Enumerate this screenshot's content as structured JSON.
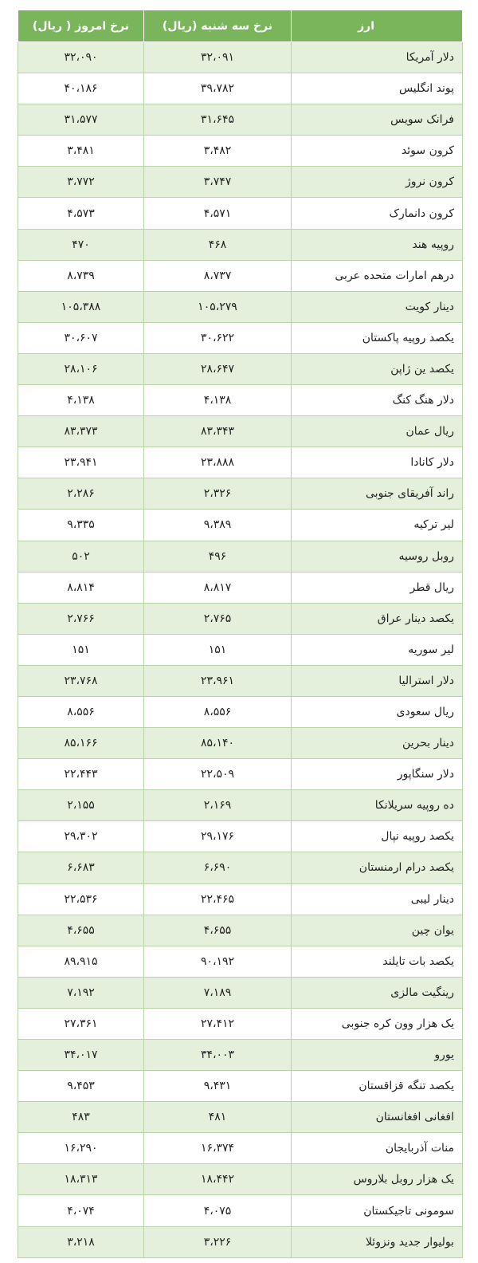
{
  "table": {
    "header": [
      "ارز",
      "نرخ سه شنبه (ریال)",
      "نرخ امروز ( ریال)"
    ],
    "rows": [
      [
        "دلار آمریکا",
        "۳۲،۰۹۱",
        "۳۲،۰۹۰"
      ],
      [
        "پوند انگلیس",
        "۳۹،۷۸۲",
        "۴۰،۱۸۶"
      ],
      [
        "فرانک سویس",
        "۳۱،۶۴۵",
        "۳۱،۵۷۷"
      ],
      [
        "کرون سوئد",
        "۳،۴۸۲",
        "۳،۴۸۱"
      ],
      [
        "کرون نروژ",
        "۳،۷۴۷",
        "۳،۷۷۲"
      ],
      [
        "کرون دانمارک",
        "۴،۵۷۱",
        "۴،۵۷۳"
      ],
      [
        "روپیه هند",
        "۴۶۸",
        "۴۷۰"
      ],
      [
        "درهم امارات متحده عربی",
        "۸،۷۳۷",
        "۸،۷۳۹"
      ],
      [
        "دینار کویت",
        "۱۰۵،۲۷۹",
        "۱۰۵،۳۸۸"
      ],
      [
        "یکصد روپیه پاکستان",
        "۳۰،۶۲۲",
        "۳۰،۶۰۷"
      ],
      [
        "یکصد ین ژاپن",
        "۲۸،۶۴۷",
        "۲۸،۱۰۶"
      ],
      [
        "دلار هنگ کنگ",
        "۴،۱۳۸",
        "۴،۱۳۸"
      ],
      [
        "ریال عمان",
        "۸۳،۳۴۳",
        "۸۳،۳۷۳"
      ],
      [
        "دلار کانادا",
        "۲۳،۸۸۸",
        "۲۳،۹۴۱"
      ],
      [
        "راند آفریقای جنوبی",
        "۲،۳۲۶",
        "۲،۲۸۶"
      ],
      [
        "لیر ترکیه",
        "۹،۳۸۹",
        "۹،۳۳۵"
      ],
      [
        "روبل روسیه",
        "۴۹۶",
        "۵۰۲"
      ],
      [
        "ریال قطر",
        "۸،۸۱۷",
        "۸،۸۱۴"
      ],
      [
        "یکصد دینار عراق",
        "۲،۷۶۵",
        "۲،۷۶۶"
      ],
      [
        "لیر سوریه",
        "۱۵۱",
        "۱۵۱"
      ],
      [
        "دلار استرالیا",
        "۲۳،۹۶۱",
        "۲۳،۷۶۸"
      ],
      [
        "ریال سعودی",
        "۸،۵۵۶",
        "۸،۵۵۶"
      ],
      [
        "دینار بحرین",
        "۸۵،۱۴۰",
        "۸۵،۱۶۶"
      ],
      [
        "دلار سنگاپور",
        "۲۲،۵۰۹",
        "۲۲،۴۴۳"
      ],
      [
        "ده روپیه سریلانکا",
        "۲،۱۶۹",
        "۲،۱۵۵"
      ],
      [
        "یکصد روپیه نپال",
        "۲۹،۱۷۶",
        "۲۹،۳۰۲"
      ],
      [
        "یکصد درام ارمنستان",
        "۶،۶۹۰",
        "۶،۶۸۳"
      ],
      [
        "دینار لیبی",
        "۲۲،۴۶۵",
        "۲۲،۵۳۶"
      ],
      [
        "یوان چین",
        "۴،۶۵۵",
        "۴،۶۵۵"
      ],
      [
        "یکصد بات تایلند",
        "۹۰،۱۹۲",
        "۸۹،۹۱۵"
      ],
      [
        "رینگیت مالزی",
        "۷،۱۸۹",
        "۷،۱۹۲"
      ],
      [
        "یک هزار وون کره جنوبی",
        "۲۷،۴۱۲",
        "۲۷،۳۶۱"
      ],
      [
        "یورو",
        "۳۴،۰۰۳",
        "۳۴،۰۱۷"
      ],
      [
        "یکصد تنگه قزاقستان",
        "۹،۴۳۱",
        "۹،۴۵۳"
      ],
      [
        "افغانی افغانستان",
        "۴۸۱",
        "۴۸۳"
      ],
      [
        "منات آذربایجان",
        "۱۶،۳۷۴",
        "۱۶،۲۹۰"
      ],
      [
        "یک هزار روبل بلاروس",
        "۱۸،۴۴۲",
        "۱۸،۳۱۳"
      ],
      [
        "سومونی تاجیکستان",
        "۴،۰۷۵",
        "۴،۰۷۴"
      ],
      [
        "بولیوار جدید ونزوئلا",
        "۳،۲۲۶",
        "۳،۲۱۸"
      ]
    ]
  }
}
